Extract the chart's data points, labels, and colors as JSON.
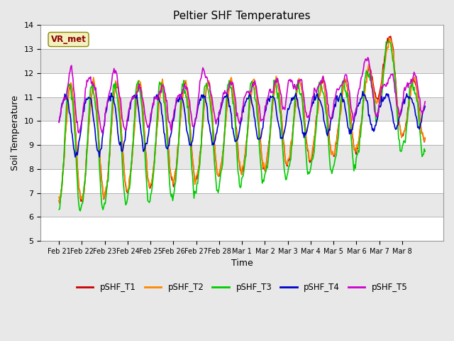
{
  "title": "Peltier SHF Temperatures",
  "xlabel": "Time",
  "ylabel": "Soil Temperature",
  "ylim": [
    5.0,
    14.0
  ],
  "yticks": [
    5.0,
    6.0,
    7.0,
    8.0,
    9.0,
    10.0,
    11.0,
    12.0,
    13.0,
    14.0
  ],
  "xtick_labels": [
    "Feb 21",
    "Feb 22",
    "Feb 23",
    "Feb 24",
    "Feb 25",
    "Feb 26",
    "Feb 27",
    "Feb 28",
    "Mar 1",
    "Mar 2",
    "Mar 3",
    "Mar 4",
    "Mar 5",
    "Mar 6",
    "Mar 7",
    "Mar 8"
  ],
  "series_colors": {
    "pSHF_T1": "#cc0000",
    "pSHF_T2": "#ff8800",
    "pSHF_T3": "#00cc00",
    "pSHF_T4": "#0000cc",
    "pSHF_T5": "#cc00cc"
  },
  "legend_label": "VR_met",
  "fig_bg_color": "#e8e8e8",
  "plot_bg_color": "#ffffff",
  "band_colors": [
    "#ffffff",
    "#e8e8e8"
  ],
  "line_width": 1.2,
  "n_points": 500,
  "seed": 7
}
